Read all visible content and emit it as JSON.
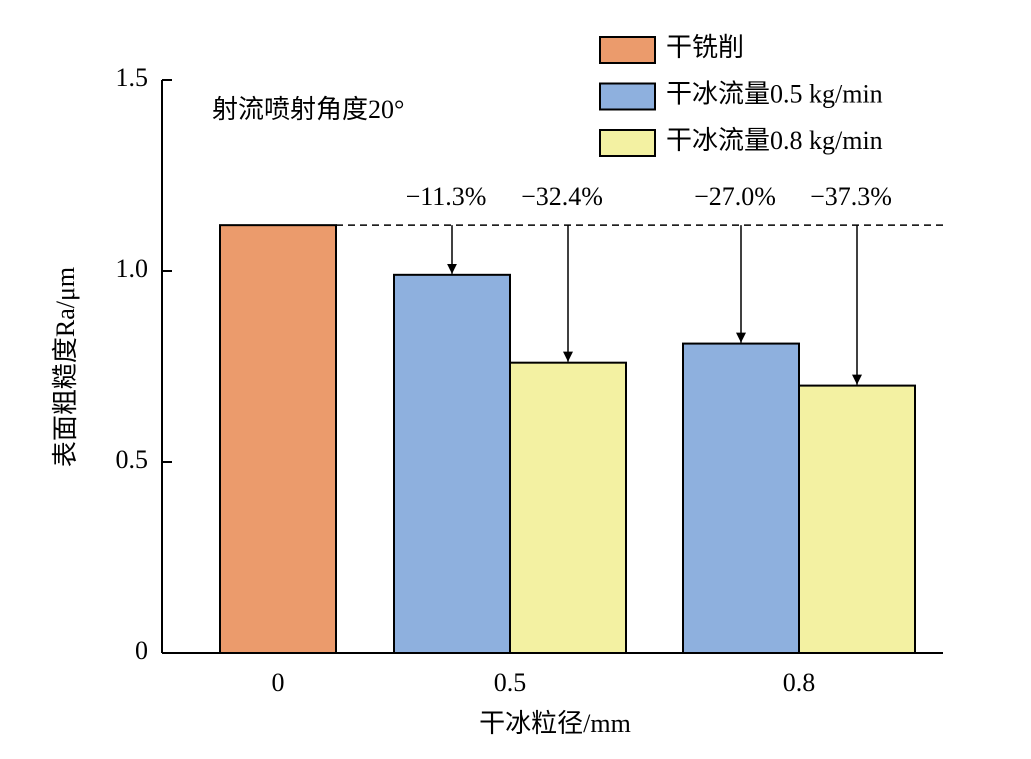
{
  "chart_data": {
    "type": "bar",
    "subtitle": "射流喷射角度20°",
    "x_label": "干冰粒径/mm",
    "y_label": "表面粗糙度Ra/μm",
    "categories": [
      "0",
      "0.5",
      "0.8"
    ],
    "series": [
      {
        "name": "干铣削",
        "color": "#eb9b6c",
        "values": [
          1.12,
          null,
          null
        ]
      },
      {
        "name": "干冰流量0.5 kg/min",
        "color": "#8eb0de",
        "values": [
          null,
          0.99,
          0.81
        ]
      },
      {
        "name": "干冰流量0.8 kg/min",
        "color": "#f3f1a2",
        "values": [
          null,
          0.76,
          0.7
        ]
      }
    ],
    "annotations": [
      "−11.3%",
      "−32.4%",
      "−27.0%",
      "−37.3%"
    ],
    "ylim": [
      0,
      1.5
    ],
    "yticks": [
      0,
      0.5,
      {
        "value": 1,
        "label": "1.0"
      },
      1.5
    ],
    "legend": "upper right"
  }
}
